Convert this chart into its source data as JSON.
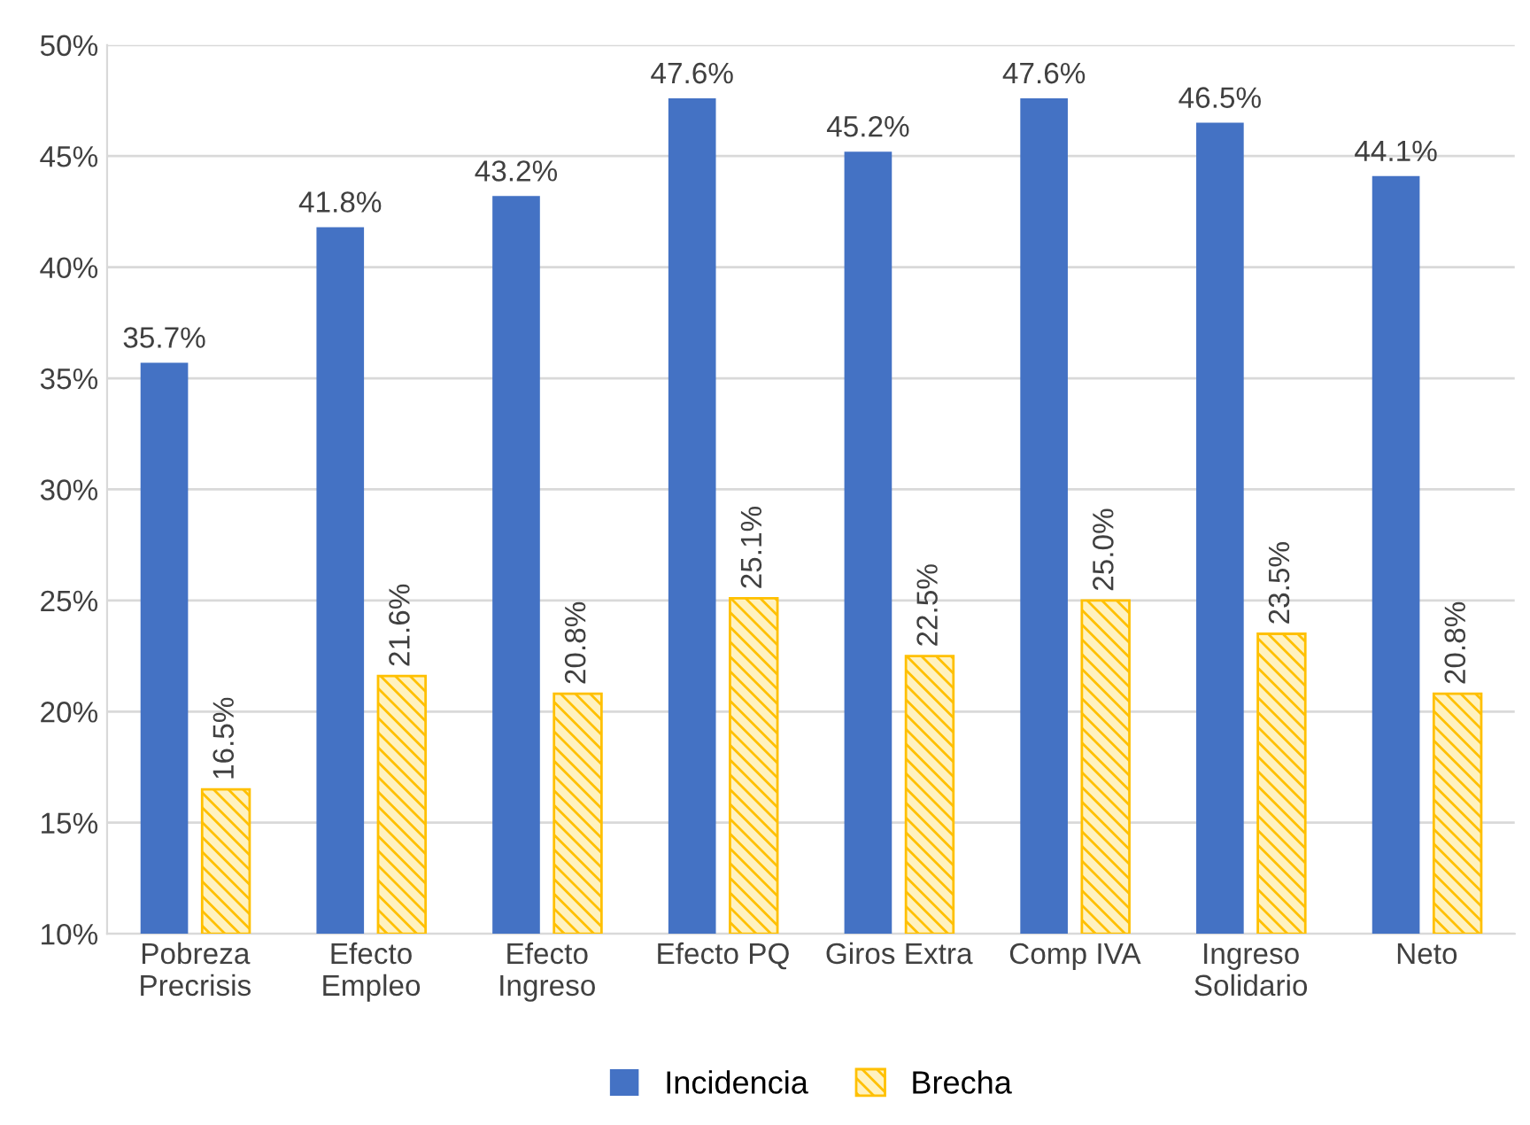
{
  "chart_data": {
    "type": "bar",
    "categories": [
      "Pobreza\nPrecrisis",
      "Efecto\nEmpleo",
      "Efecto\nIngreso",
      "Efecto PQ",
      "Giros Extra",
      "Comp IVA",
      "Ingreso\nSolidario",
      "Neto"
    ],
    "series": [
      {
        "name": "Incidencia",
        "color": "#4472c4",
        "values": [
          35.7,
          41.8,
          43.2,
          47.6,
          45.2,
          47.6,
          46.5,
          44.1
        ],
        "value_labels": [
          "35.7%",
          "41.8%",
          "43.2%",
          "47.6%",
          "45.2%",
          "47.6%",
          "46.5%",
          "44.1%"
        ]
      },
      {
        "name": "Brecha",
        "color": "#ffc000",
        "values": [
          16.5,
          21.6,
          20.8,
          25.1,
          22.5,
          25.0,
          23.5,
          20.8
        ],
        "value_labels": [
          "16.5%",
          "21.6%",
          "20.8%",
          "25.1%",
          "22.5%",
          "25.0%",
          "23.5%",
          "20.8%"
        ]
      }
    ],
    "ylim": [
      10,
      50
    ],
    "yticks": [
      {
        "value": 10,
        "label": "10%"
      },
      {
        "value": 15,
        "label": "15%"
      },
      {
        "value": 20,
        "label": "20%"
      },
      {
        "value": 25,
        "label": "25%"
      },
      {
        "value": 30,
        "label": "30%"
      },
      {
        "value": 35,
        "label": "35%"
      },
      {
        "value": 40,
        "label": "40%"
      },
      {
        "value": 45,
        "label": "45%"
      },
      {
        "value": 50,
        "label": "50%"
      }
    ],
    "grid": "y",
    "legend": "bottom"
  }
}
